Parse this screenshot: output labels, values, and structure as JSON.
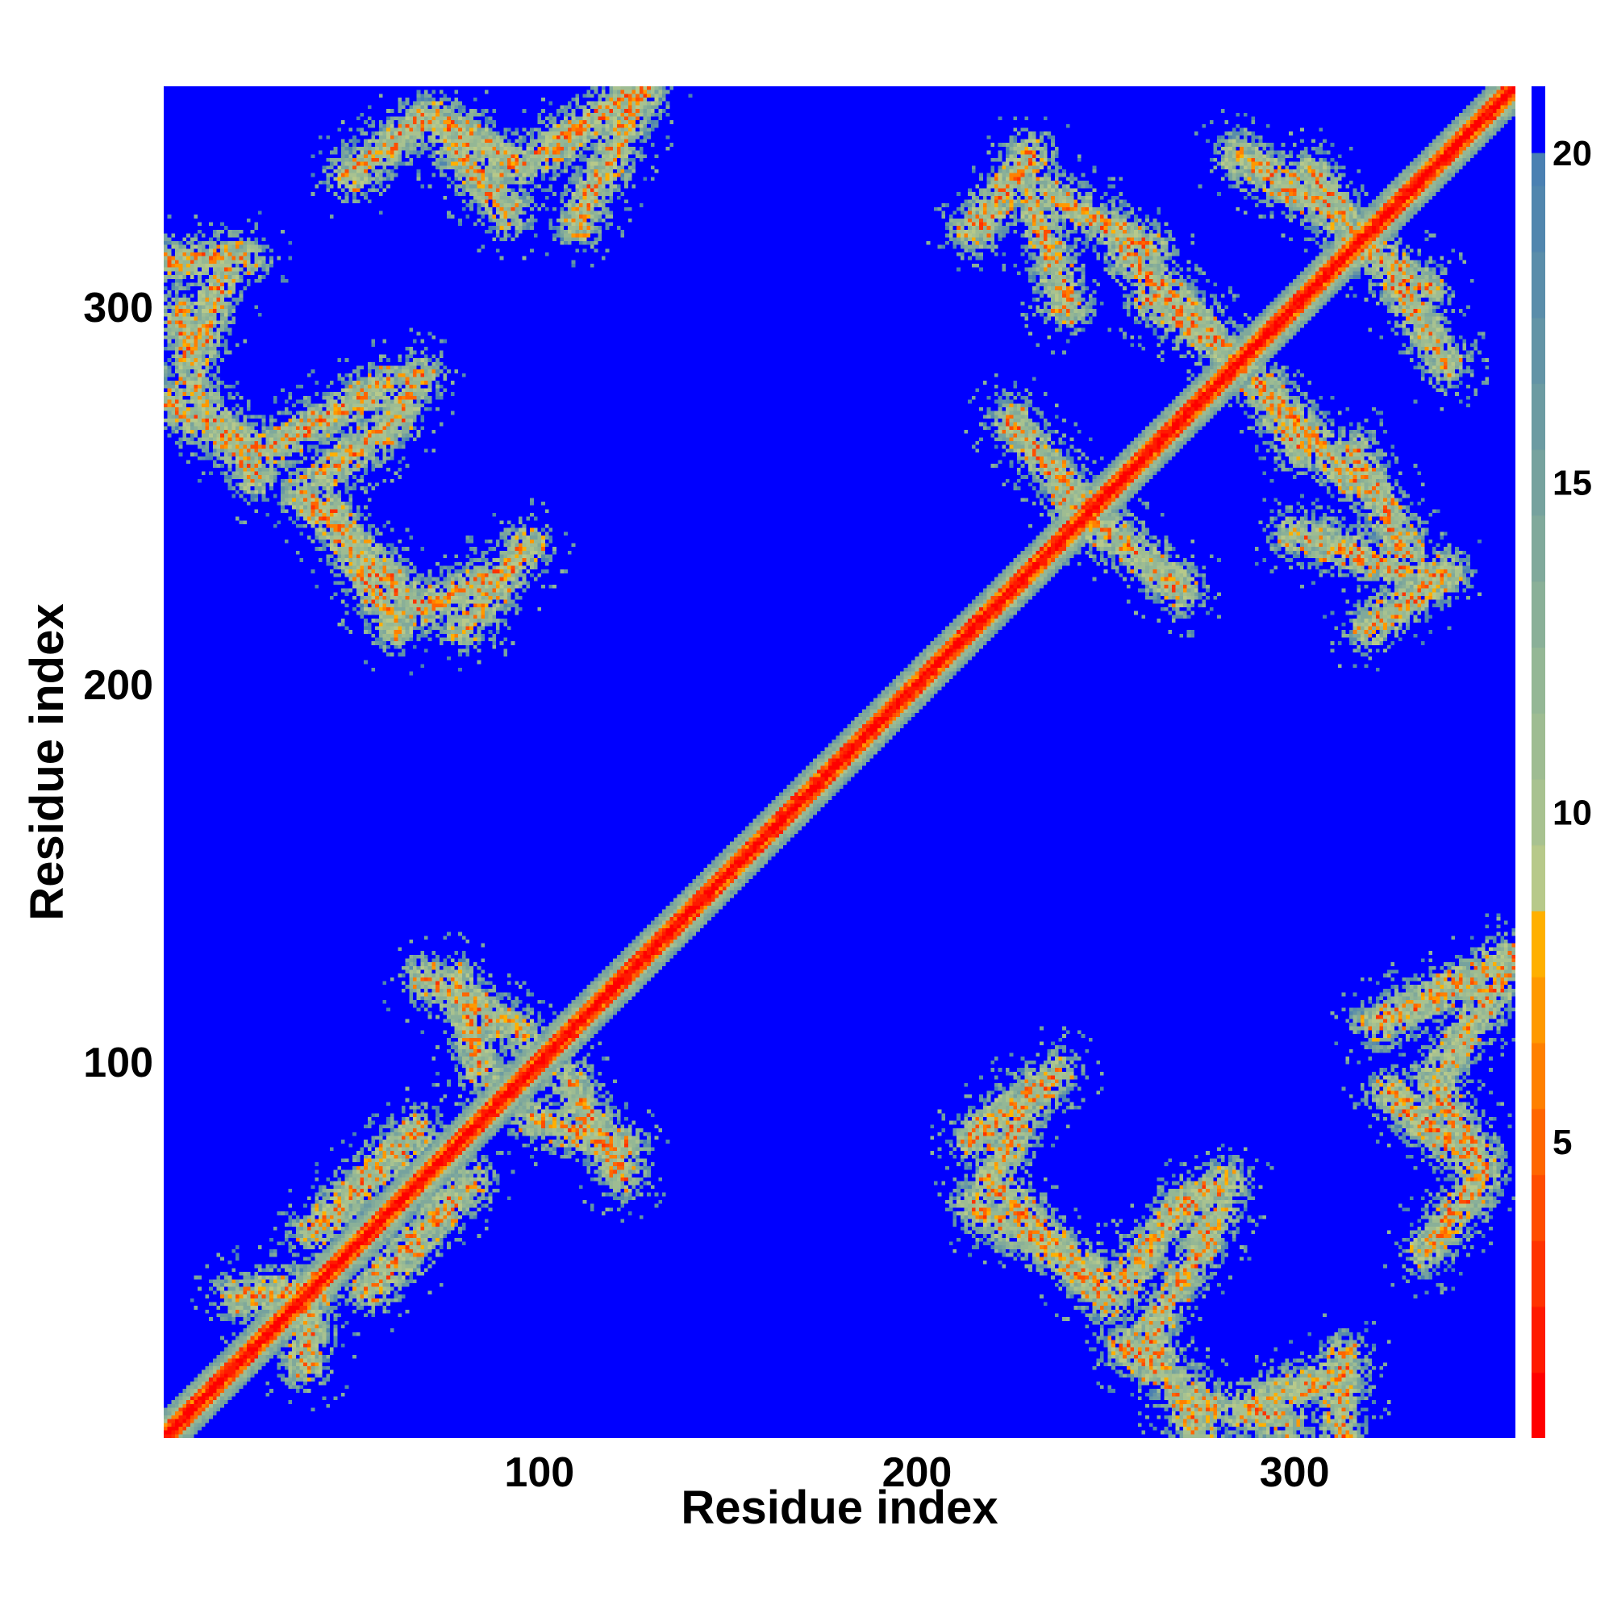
{
  "chart_data": {
    "type": "heatmap",
    "title": "",
    "xlabel": "Residue index",
    "ylabel": "Residue index",
    "xlim": [
      1,
      358
    ],
    "ylim": [
      1,
      358
    ],
    "x_ticks": [
      100,
      200,
      300
    ],
    "y_ticks": [
      100,
      200,
      300
    ],
    "colorbar": {
      "range": [
        0.5,
        21.0
      ],
      "ticks": [
        5,
        10,
        15,
        20
      ],
      "levels": [
        {
          "from": 0.5,
          "to": 1.5,
          "color": "#ff0000"
        },
        {
          "from": 1.5,
          "to": 2.5,
          "color": "#ff1a00"
        },
        {
          "from": 2.5,
          "to": 3.5,
          "color": "#ff3300"
        },
        {
          "from": 3.5,
          "to": 4.5,
          "color": "#ff4d00"
        },
        {
          "from": 4.5,
          "to": 5.5,
          "color": "#ff6600"
        },
        {
          "from": 5.5,
          "to": 6.5,
          "color": "#ff8000"
        },
        {
          "from": 6.5,
          "to": 7.5,
          "color": "#ff9900"
        },
        {
          "from": 7.5,
          "to": 8.5,
          "color": "#ffb000"
        },
        {
          "from": 8.5,
          "to": 9.5,
          "color": "#b7c98a"
        },
        {
          "from": 9.5,
          "to": 10.5,
          "color": "#a8c290"
        },
        {
          "from": 10.5,
          "to": 11.5,
          "color": "#9ebc92"
        },
        {
          "from": 11.5,
          "to": 12.5,
          "color": "#94b795"
        },
        {
          "from": 12.5,
          "to": 13.5,
          "color": "#8ab098"
        },
        {
          "from": 13.5,
          "to": 14.5,
          "color": "#80a99b"
        },
        {
          "from": 14.5,
          "to": 15.5,
          "color": "#76a29e"
        },
        {
          "from": 15.5,
          "to": 16.5,
          "color": "#6c9ba2"
        },
        {
          "from": 16.5,
          "to": 17.5,
          "color": "#6394a6"
        },
        {
          "from": 17.5,
          "to": 18.5,
          "color": "#5a8daa"
        },
        {
          "from": 18.5,
          "to": 19.5,
          "color": "#5186ae"
        },
        {
          "from": 19.5,
          "to": 20.0,
          "color": "#4a80b2"
        },
        {
          "from": 20.0,
          "to": 21.0,
          "color": "#0000ff"
        }
      ]
    },
    "matrix_model": {
      "description_units": "residue index",
      "diagonal_band": {
        "core_halfwidth": 2,
        "band_halfwidth": 5.5
      },
      "contact_segments": [
        {
          "from": [
            1,
            312
          ],
          "to": [
            22,
            313
          ]
        },
        {
          "from": [
            1,
            275
          ],
          "to": [
            25,
            262
          ]
        },
        {
          "from": [
            28,
            262
          ],
          "to": [
            60,
            280
          ]
        },
        {
          "from": [
            37,
            251
          ],
          "to": [
            68,
            220
          ]
        },
        {
          "from": [
            68,
            220
          ],
          "to": [
            92,
            230
          ]
        },
        {
          "from": [
            50,
            335
          ],
          "to": [
            70,
            350
          ]
        },
        {
          "from": [
            72,
            350
          ],
          "to": [
            95,
            337
          ]
        },
        {
          "from": [
            100,
            340
          ],
          "to": [
            125,
            357
          ]
        },
        {
          "from": [
            215,
            320
          ],
          "to": [
            230,
            340
          ]
        },
        {
          "from": [
            235,
            330
          ],
          "to": [
            262,
            315
          ]
        },
        {
          "from": [
            262,
            302
          ],
          "to": [
            280,
            290
          ]
        },
        {
          "from": [
            290,
            280
          ],
          "to": [
            315,
            255
          ]
        },
        {
          "from": [
            285,
            340
          ],
          "to": [
            310,
            325
          ]
        },
        {
          "from": [
            315,
            318
          ],
          "to": [
            335,
            305
          ]
        },
        {
          "from": [
            225,
            270
          ],
          "to": [
            250,
            240
          ]
        },
        {
          "from": [
            300,
            240
          ],
          "to": [
            330,
            230
          ]
        },
        {
          "from": [
            20,
            38
          ],
          "to": [
            40,
            40
          ]
        },
        {
          "from": [
            40,
            55
          ],
          "to": [
            68,
            82
          ]
        },
        {
          "from": [
            70,
            122
          ],
          "to": [
            95,
            108
          ]
        },
        {
          "from": [
            98,
            85
          ],
          "to": [
            122,
            78
          ]
        },
        {
          "from": [
            215,
            80
          ],
          "to": [
            237,
            97
          ]
        },
        {
          "from": [
            215,
            62
          ],
          "to": [
            245,
            45
          ]
        },
        {
          "from": [
            255,
            42
          ],
          "to": [
            270,
            62
          ]
        },
        {
          "from": [
            270,
            62
          ],
          "to": [
            282,
            68
          ]
        },
        {
          "from": [
            255,
            25
          ],
          "to": [
            278,
            8
          ]
        },
        {
          "from": [
            290,
            10
          ],
          "to": [
            312,
            17
          ]
        },
        {
          "from": [
            322,
            110
          ],
          "to": [
            358,
            128
          ]
        },
        {
          "from": [
            325,
            92
          ],
          "to": [
            345,
            75
          ]
        },
        {
          "from": [
            285,
            8
          ],
          "to": [
            298,
            5
          ]
        }
      ]
    }
  }
}
